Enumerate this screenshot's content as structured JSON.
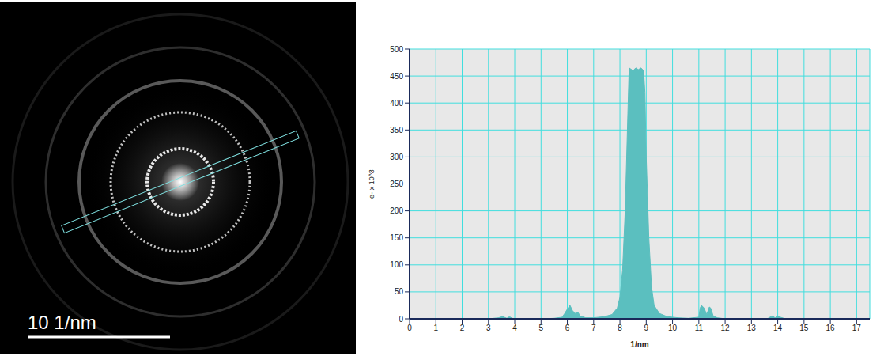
{
  "image": {
    "scale_bar_label": "10 1/nm"
  },
  "chart_data": {
    "type": "area",
    "x_label": "1/nm",
    "y_label": "e- x 10^3",
    "color": "#5bbfbf",
    "grid": true,
    "xlim": [
      0,
      17.5
    ],
    "xticks": [
      0,
      1,
      2,
      3,
      4,
      5,
      6,
      7,
      8,
      9,
      10,
      11,
      12,
      13,
      14,
      15,
      16,
      17
    ],
    "ylim": [
      0,
      500
    ],
    "yticks": [
      0,
      50,
      100,
      150,
      200,
      250,
      300,
      350,
      400,
      450,
      500
    ],
    "x": [
      0,
      3.0,
      3.4,
      3.5,
      3.6,
      3.7,
      3.8,
      3.9,
      4.2,
      5.0,
      5.5,
      5.8,
      5.9,
      6.0,
      6.1,
      6.2,
      6.3,
      6.4,
      6.5,
      6.7,
      7.0,
      7.4,
      7.7,
      7.9,
      8.0,
      8.1,
      8.2,
      8.3,
      8.35,
      8.5,
      8.6,
      8.7,
      8.8,
      8.9,
      8.95,
      9.0,
      9.1,
      9.2,
      9.3,
      9.5,
      9.8,
      10.2,
      10.6,
      11.0,
      11.05,
      11.1,
      11.2,
      11.3,
      11.4,
      11.45,
      11.55,
      11.7,
      12.0,
      13.6,
      13.7,
      13.8,
      13.9,
      14.0,
      14.1,
      14.3,
      17.4
    ],
    "values": [
      0,
      0,
      2,
      5,
      3,
      1,
      4,
      1,
      0,
      0,
      1,
      3,
      10,
      18,
      25,
      15,
      10,
      12,
      5,
      2,
      2,
      4,
      8,
      20,
      40,
      90,
      200,
      380,
      465,
      460,
      465,
      462,
      465,
      460,
      420,
      300,
      150,
      60,
      25,
      10,
      4,
      2,
      1,
      3,
      20,
      25,
      20,
      8,
      22,
      20,
      5,
      2,
      0,
      0,
      3,
      5,
      2,
      5,
      3,
      0,
      0
    ]
  }
}
